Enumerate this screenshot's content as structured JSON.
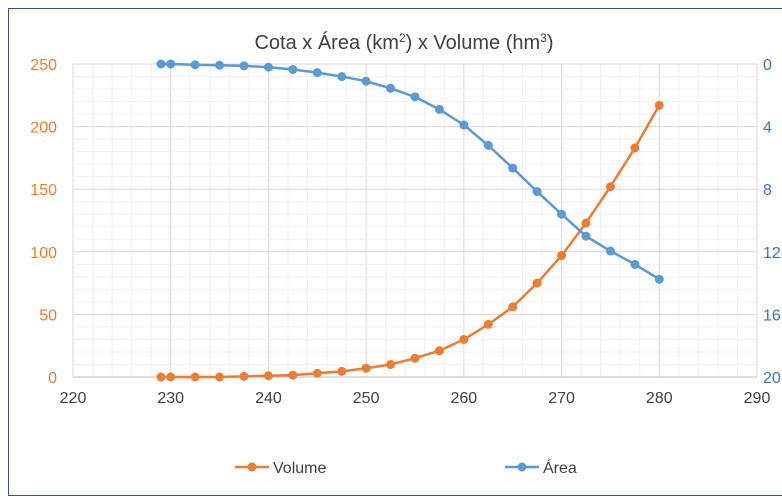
{
  "chart_data": {
    "type": "line",
    "title": "Cota x Área (km²) x Volume (hm³)",
    "title_parts": {
      "prefix": "Cota x Área (km",
      "sup1": "2",
      "middle": ") x Volume (hm",
      "sup2": "3",
      "suffix": ")"
    },
    "grid": true,
    "legend_position": "bottom",
    "xlim": [
      220,
      290
    ],
    "x_ticks": [
      "220",
      "230",
      "240",
      "250",
      "260",
      "270",
      "280",
      "290"
    ],
    "y_left": {
      "lim": [
        0,
        250
      ],
      "ticks": [
        "0",
        "50",
        "100",
        "150",
        "200",
        "250"
      ]
    },
    "y_right": {
      "lim": [
        0,
        20
      ],
      "reversed": true,
      "ticks": [
        "0",
        "4",
        "8",
        "12",
        "16",
        "20"
      ]
    },
    "series": [
      {
        "name": "Volume",
        "axis": "left",
        "color": "#ed7d31",
        "x": [
          229,
          230,
          232.5,
          235,
          237.5,
          240,
          242.5,
          245,
          247.5,
          250,
          252.5,
          255,
          257.5,
          260,
          262.5,
          265,
          267.5,
          270,
          272.5,
          275,
          277.5,
          280
        ],
        "y": [
          0,
          0,
          0,
          0,
          0.5,
          1,
          1.5,
          3,
          4.5,
          7,
          10,
          15,
          21,
          30,
          42,
          56,
          75,
          97,
          123,
          152,
          183,
          217
        ]
      },
      {
        "name": "Área",
        "axis": "right",
        "color": "#5b9bd5",
        "x": [
          229,
          230,
          232.5,
          235,
          237.5,
          240,
          242.5,
          245,
          247.5,
          250,
          252.5,
          255,
          257.5,
          260,
          262.5,
          265,
          267.5,
          270,
          272.5,
          275,
          277.5,
          280
        ],
        "y": [
          0,
          0,
          0.05,
          0.08,
          0.12,
          0.2,
          0.35,
          0.55,
          0.8,
          1.1,
          1.55,
          2.1,
          2.9,
          3.9,
          5.2,
          6.65,
          8.15,
          9.6,
          11.0,
          11.95,
          12.8,
          13.75
        ]
      }
    ]
  }
}
